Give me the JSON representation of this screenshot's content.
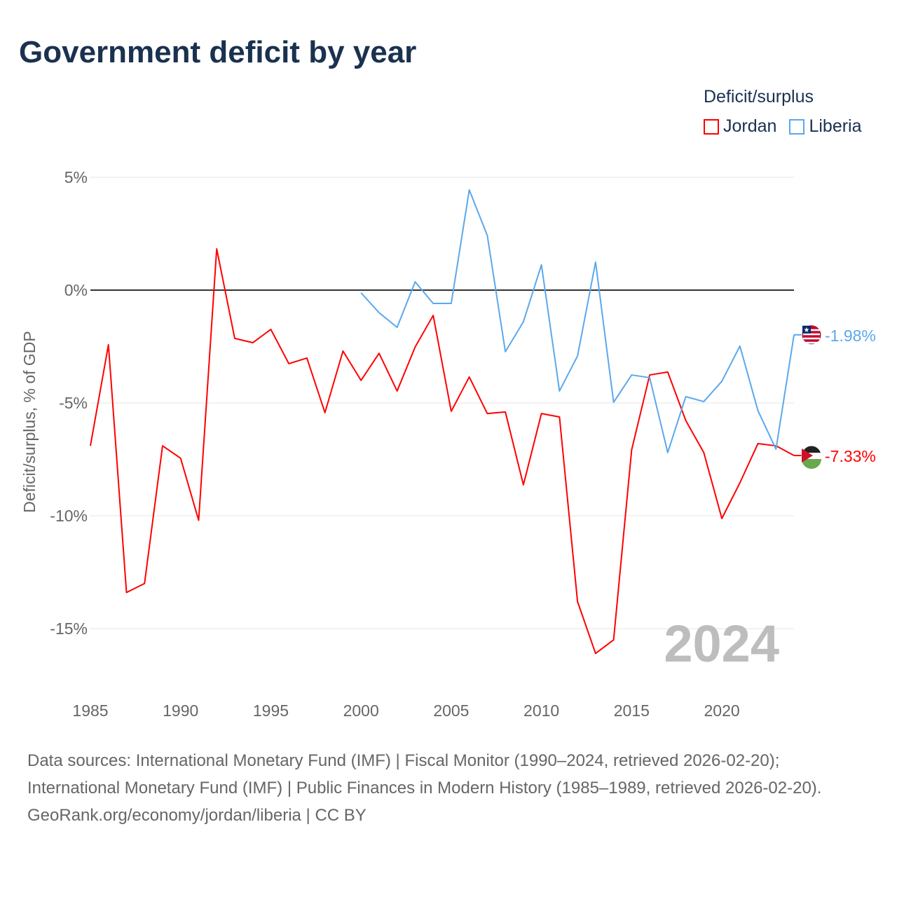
{
  "title": "Government deficit by year",
  "footer": {
    "sources": "Data sources: International Monetary Fund (IMF) | Fiscal Monitor (1990–2024, retrieved 2026-02-20); International Monetary Fund (IMF) | Public Finances in Modern History (1985–1989, retrieved 2026-02-20).",
    "credit": "GeoRank.org/economy/jordan/liberia | CC BY"
  },
  "chart_data": {
    "type": "line",
    "title": "Government deficit by year",
    "xlabel": "",
    "ylabel": "Deficit/surplus, % of GDP",
    "legend_title": "Deficit/surplus",
    "legend_position": "top-right",
    "year_watermark": "2024",
    "xlim": [
      1985,
      2024
    ],
    "ylim": [
      -15,
      5
    ],
    "xticks": [
      "1985",
      "1990",
      "1995",
      "2000",
      "2005",
      "2010",
      "2015",
      "2020"
    ],
    "yticks": [
      {
        "v": 5,
        "label": "5%"
      },
      {
        "v": 0,
        "label": "0%"
      },
      {
        "v": -5,
        "label": "-5%"
      },
      {
        "v": -10,
        "label": "-10%"
      },
      {
        "v": -15,
        "label": "-15%"
      }
    ],
    "series": [
      {
        "name": "Jordan",
        "color": "#ff0000",
        "end_label": "-7.33%",
        "start": 1985,
        "values": [
          -6.9,
          -2.42,
          -13.4,
          -13.0,
          -6.9,
          -7.45,
          -10.2,
          1.83,
          -2.14,
          -2.33,
          -1.74,
          -3.26,
          -3.01,
          -5.43,
          -2.7,
          -4.0,
          -2.8,
          -4.47,
          -2.52,
          -1.12,
          -5.37,
          -3.85,
          -5.47,
          -5.4,
          -8.63,
          -5.47,
          -5.62,
          -13.8,
          -16.1,
          -15.5,
          -7.08,
          -3.76,
          -3.63,
          -5.78,
          -7.2,
          -10.12,
          -8.54,
          -6.8,
          -6.9,
          -7.33
        ]
      },
      {
        "name": "Liberia",
        "color": "#5ba8ec",
        "end_label": "-1.98%",
        "start": 2000,
        "values": [
          -0.12,
          -1.0,
          -1.65,
          0.37,
          -0.59,
          -0.59,
          4.44,
          2.42,
          -2.73,
          -1.4,
          1.12,
          -4.47,
          -2.92,
          1.24,
          -4.97,
          -3.76,
          -3.88,
          -7.2,
          -4.72,
          -4.94,
          -4.04,
          -2.48,
          -5.34,
          -7.05,
          -1.98
        ]
      }
    ]
  }
}
